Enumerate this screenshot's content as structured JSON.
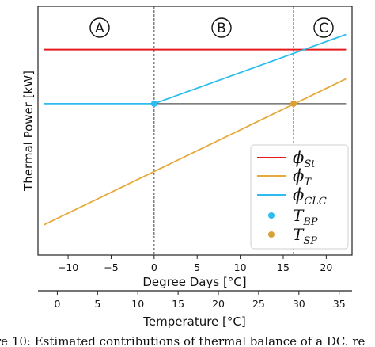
{
  "chart_data": {
    "type": "line",
    "title": "",
    "xlabel": "Degree Days [°C]",
    "ylabel": "Thermal Power [kW]",
    "xlim": [
      -13.5,
      23
    ],
    "x_ticks": [
      "−10",
      "−5",
      "0",
      "5",
      "10",
      "15",
      "20"
    ],
    "x_tick_values": [
      -10,
      -5,
      0,
      5,
      10,
      15,
      20
    ],
    "y_ticks": [],
    "grid": false,
    "legend_position": "lower-right",
    "regions": [
      {
        "label": "A"
      },
      {
        "label": "B"
      },
      {
        "label": "C"
      }
    ],
    "region_boundaries": [
      0,
      16.2
    ],
    "series": [
      {
        "name": "φSt",
        "legend_main": "ϕ",
        "legend_sub": "St",
        "color": "#e41a1c",
        "x": [
          -12.8,
          22.3
        ],
        "y": [
          1.0,
          1.0
        ]
      },
      {
        "name": "φT",
        "legend_main": "ϕ",
        "legend_sub": "T",
        "color": "#e6a93c",
        "x": [
          -12.8,
          22.3
        ],
        "y": [
          -0.62,
          0.73
        ]
      },
      {
        "name": "φCLC",
        "legend_main": "ϕ",
        "legend_sub": "CLC",
        "color": "#2bbcf0",
        "x": [
          -12.8,
          0,
          22.3
        ],
        "y": [
          0.5,
          0.5,
          1.14
        ]
      },
      {
        "name": "reference",
        "color": "#555555",
        "x": [
          0,
          22.3
        ],
        "y": [
          0.5,
          0.5
        ]
      }
    ],
    "points": [
      {
        "name": "TBP",
        "legend_main": "T",
        "legend_sub": "BP",
        "color": "#2bbcf0",
        "x": 0,
        "y": 0.5
      },
      {
        "name": "TSP",
        "legend_main": "T",
        "legend_sub": "SP",
        "color": "#d8a235",
        "x": 16.2,
        "y": 0.5
      }
    ],
    "secondary_axis": {
      "xlabel": "Temperature [°C]",
      "ticks": [
        "0",
        "5",
        "10",
        "15",
        "20",
        "25",
        "30",
        "35"
      ],
      "tick_values": [
        0,
        5,
        10,
        15,
        20,
        25,
        30,
        35
      ],
      "xlim": [
        -2.4,
        36.6
      ]
    }
  },
  "caption": "re 10:  Estimated contributions of thermal balance of a DC. re"
}
